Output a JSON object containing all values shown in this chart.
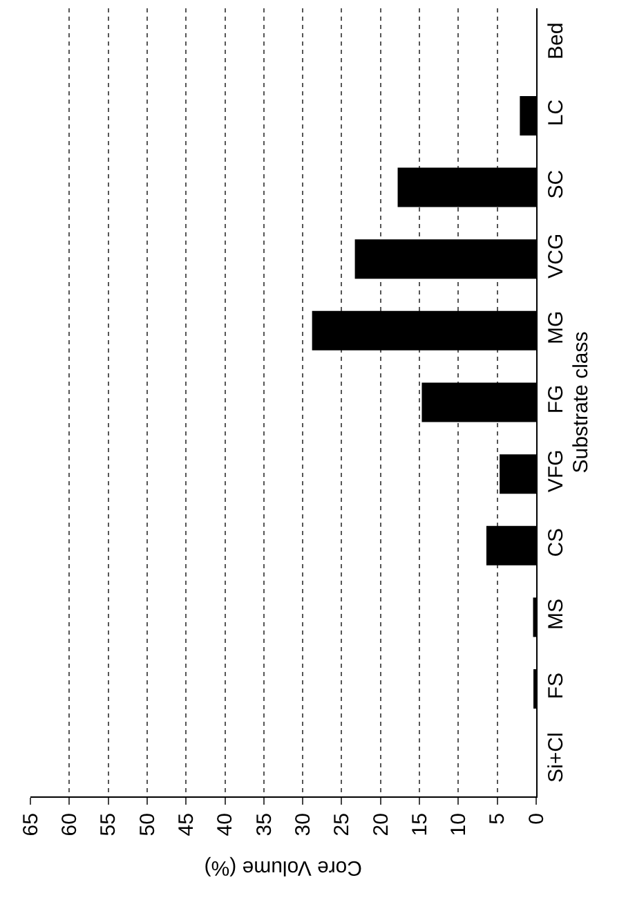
{
  "chart_data": {
    "type": "bar",
    "orientation": "horizontal",
    "xlabel": "Core Volume (%)",
    "ylabel": "Substrate class",
    "categories": [
      "Bed",
      "LC",
      "SC",
      "VCG",
      "MG",
      "FG",
      "VFG",
      "CS",
      "MS",
      "FS",
      "Si+Cl"
    ],
    "values": [
      0,
      2.1,
      17.8,
      23.3,
      28.8,
      14.7,
      4.7,
      6.4,
      0.4,
      0.2,
      0
    ],
    "color": "#000000",
    "xlim": [
      65,
      0
    ],
    "xticks": [
      0,
      5,
      10,
      15,
      20,
      25,
      30,
      35,
      40,
      45,
      50,
      55,
      60,
      65
    ],
    "grid": "x"
  }
}
